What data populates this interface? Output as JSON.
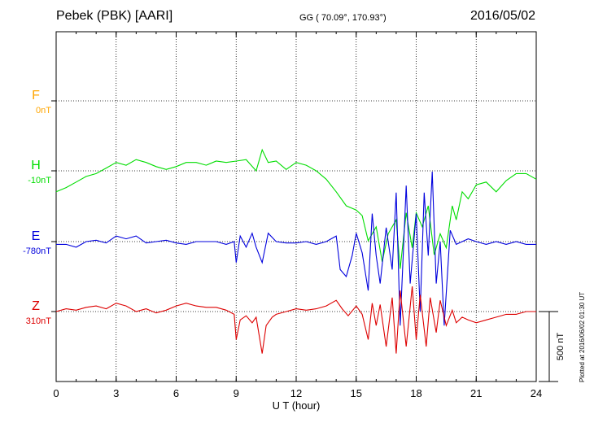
{
  "header": {
    "station": "Pebek (PBK)  [AARI]",
    "coords": "GG ( 70.09°, 170.93°)",
    "date": "2016/05/02"
  },
  "plotted_note": "Plotted at 2016/06/02 01:30 UT",
  "chart_data": {
    "type": "line",
    "xlabel": "U T (hour)",
    "xlim": [
      0,
      24
    ],
    "xticks": [
      0,
      3,
      6,
      9,
      12,
      15,
      18,
      21,
      24
    ],
    "scale_bar": "500 nT",
    "grid": true,
    "series": [
      {
        "name": "F",
        "offset": "0nT",
        "color": "#ffa500",
        "points": []
      },
      {
        "name": "H",
        "offset": "-10nT",
        "color": "#00dd00",
        "points": [
          [
            0,
            -150
          ],
          [
            0.5,
            -120
          ],
          [
            1,
            -80
          ],
          [
            1.5,
            -40
          ],
          [
            2,
            -20
          ],
          [
            2.5,
            20
          ],
          [
            3,
            60
          ],
          [
            3.5,
            40
          ],
          [
            4,
            80
          ],
          [
            4.5,
            60
          ],
          [
            5,
            30
          ],
          [
            5.5,
            10
          ],
          [
            6,
            30
          ],
          [
            6.5,
            60
          ],
          [
            7,
            60
          ],
          [
            7.5,
            40
          ],
          [
            8,
            70
          ],
          [
            8.5,
            60
          ],
          [
            9,
            70
          ],
          [
            9.5,
            80
          ],
          [
            10,
            0
          ],
          [
            10.3,
            150
          ],
          [
            10.6,
            60
          ],
          [
            11,
            70
          ],
          [
            11.5,
            10
          ],
          [
            12,
            60
          ],
          [
            12.5,
            40
          ],
          [
            13,
            0
          ],
          [
            13.5,
            -60
          ],
          [
            14,
            -150
          ],
          [
            14.5,
            -250
          ],
          [
            15,
            -280
          ],
          [
            15.3,
            -320
          ],
          [
            15.6,
            -500
          ],
          [
            16,
            -400
          ],
          [
            16.3,
            -650
          ],
          [
            16.6,
            -450
          ],
          [
            17,
            -350
          ],
          [
            17.2,
            -700
          ],
          [
            17.5,
            -300
          ],
          [
            17.8,
            -550
          ],
          [
            18,
            -300
          ],
          [
            18.3,
            -400
          ],
          [
            18.6,
            -250
          ],
          [
            18.9,
            -600
          ],
          [
            19.2,
            -450
          ],
          [
            19.5,
            -550
          ],
          [
            19.8,
            -250
          ],
          [
            20,
            -350
          ],
          [
            20.3,
            -150
          ],
          [
            20.6,
            -200
          ],
          [
            21,
            -100
          ],
          [
            21.5,
            -80
          ],
          [
            22,
            -150
          ],
          [
            22.5,
            -70
          ],
          [
            23,
            -20
          ],
          [
            23.5,
            -20
          ],
          [
            24,
            -60
          ]
        ]
      },
      {
        "name": "E",
        "offset": "-780nT",
        "color": "#0000dd",
        "points": [
          [
            0,
            -20
          ],
          [
            0.5,
            -20
          ],
          [
            1,
            -40
          ],
          [
            1.5,
            0
          ],
          [
            2,
            10
          ],
          [
            2.5,
            -10
          ],
          [
            3,
            40
          ],
          [
            3.5,
            20
          ],
          [
            4,
            40
          ],
          [
            4.5,
            -10
          ],
          [
            5,
            0
          ],
          [
            5.5,
            10
          ],
          [
            6,
            -10
          ],
          [
            6.5,
            -20
          ],
          [
            7,
            0
          ],
          [
            7.5,
            0
          ],
          [
            8,
            0
          ],
          [
            8.5,
            -20
          ],
          [
            8.9,
            0
          ],
          [
            9,
            -150
          ],
          [
            9.2,
            40
          ],
          [
            9.5,
            -40
          ],
          [
            9.8,
            60
          ],
          [
            10,
            -40
          ],
          [
            10.3,
            -150
          ],
          [
            10.6,
            60
          ],
          [
            11,
            0
          ],
          [
            11.5,
            -10
          ],
          [
            12,
            -10
          ],
          [
            12.5,
            0
          ],
          [
            13,
            -20
          ],
          [
            13.5,
            0
          ],
          [
            14,
            40
          ],
          [
            14.2,
            -200
          ],
          [
            14.5,
            -250
          ],
          [
            14.8,
            -100
          ],
          [
            15,
            60
          ],
          [
            15.3,
            -80
          ],
          [
            15.6,
            -350
          ],
          [
            15.8,
            200
          ],
          [
            16,
            -100
          ],
          [
            16.2,
            -300
          ],
          [
            16.5,
            100
          ],
          [
            16.8,
            -200
          ],
          [
            17,
            350
          ],
          [
            17.2,
            -600
          ],
          [
            17.5,
            400
          ],
          [
            17.7,
            -300
          ],
          [
            18,
            200
          ],
          [
            18.2,
            -500
          ],
          [
            18.4,
            350
          ],
          [
            18.6,
            -100
          ],
          [
            18.8,
            500
          ],
          [
            19,
            -300
          ],
          [
            19.2,
            0
          ],
          [
            19.4,
            -600
          ],
          [
            19.7,
            80
          ],
          [
            20,
            -20
          ],
          [
            20.3,
            0
          ],
          [
            20.6,
            20
          ],
          [
            21,
            0
          ],
          [
            21.5,
            -20
          ],
          [
            22,
            0
          ],
          [
            22.5,
            -20
          ],
          [
            23,
            0
          ],
          [
            23.5,
            -20
          ],
          [
            24,
            -20
          ]
        ]
      },
      {
        "name": "Z",
        "offset": "310nT",
        "color": "#dd0000",
        "points": [
          [
            0,
            0
          ],
          [
            0.5,
            20
          ],
          [
            1,
            10
          ],
          [
            1.5,
            30
          ],
          [
            2,
            40
          ],
          [
            2.5,
            20
          ],
          [
            3,
            60
          ],
          [
            3.5,
            40
          ],
          [
            4,
            0
          ],
          [
            4.5,
            20
          ],
          [
            5,
            -10
          ],
          [
            5.5,
            10
          ],
          [
            6,
            40
          ],
          [
            6.5,
            60
          ],
          [
            7,
            40
          ],
          [
            7.5,
            30
          ],
          [
            8,
            30
          ],
          [
            8.5,
            10
          ],
          [
            8.9,
            -20
          ],
          [
            9,
            -200
          ],
          [
            9.2,
            -60
          ],
          [
            9.5,
            -30
          ],
          [
            9.8,
            -80
          ],
          [
            10,
            -40
          ],
          [
            10.3,
            -300
          ],
          [
            10.5,
            -100
          ],
          [
            10.8,
            -40
          ],
          [
            11,
            -20
          ],
          [
            11.5,
            0
          ],
          [
            12,
            20
          ],
          [
            12.5,
            10
          ],
          [
            13,
            20
          ],
          [
            13.5,
            40
          ],
          [
            14,
            80
          ],
          [
            14.3,
            20
          ],
          [
            14.6,
            -30
          ],
          [
            15,
            40
          ],
          [
            15.3,
            -20
          ],
          [
            15.6,
            -200
          ],
          [
            15.8,
            60
          ],
          [
            16,
            -100
          ],
          [
            16.2,
            50
          ],
          [
            16.5,
            -250
          ],
          [
            16.8,
            100
          ],
          [
            17,
            -300
          ],
          [
            17.2,
            150
          ],
          [
            17.5,
            -250
          ],
          [
            17.8,
            180
          ],
          [
            18,
            -200
          ],
          [
            18.2,
            120
          ],
          [
            18.5,
            -250
          ],
          [
            18.7,
            100
          ],
          [
            19,
            -150
          ],
          [
            19.2,
            80
          ],
          [
            19.5,
            -100
          ],
          [
            19.8,
            10
          ],
          [
            20,
            -80
          ],
          [
            20.3,
            -40
          ],
          [
            20.6,
            -60
          ],
          [
            21,
            -80
          ],
          [
            21.5,
            -60
          ],
          [
            22,
            -40
          ],
          [
            22.5,
            -20
          ],
          [
            23,
            -20
          ],
          [
            23.5,
            0
          ],
          [
            24,
            0
          ]
        ]
      }
    ]
  }
}
